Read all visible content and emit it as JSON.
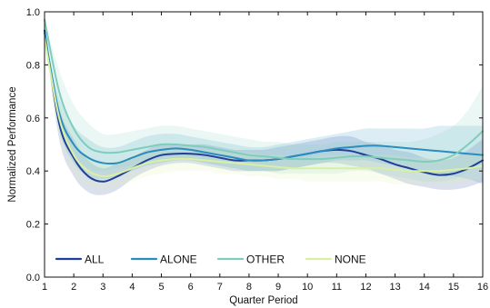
{
  "chart_data": {
    "type": "line",
    "title": "",
    "xlabel": "Quarter Period",
    "ylabel": "Normalized Performance",
    "xlim": [
      1,
      16
    ],
    "ylim": [
      0.0,
      1.0
    ],
    "x_ticks": [
      "1",
      "2",
      "3",
      "4",
      "5",
      "6",
      "7",
      "8",
      "9",
      "10",
      "11",
      "12",
      "13",
      "14",
      "15",
      "16"
    ],
    "y_ticks": [
      "0.0",
      "0.2",
      "0.4",
      "0.6",
      "0.8",
      "1.0"
    ],
    "grid": false,
    "legend_position": "bottom",
    "x": [
      1,
      1.5,
      2,
      2.5,
      3,
      3.5,
      4,
      4.5,
      5,
      5.5,
      6,
      6.5,
      7,
      7.5,
      8,
      8.5,
      9,
      9.5,
      10,
      10.5,
      11,
      11.5,
      12,
      12.5,
      13,
      13.5,
      14,
      14.5,
      15,
      15.5,
      16
    ],
    "series": [
      {
        "name": "ALL",
        "color": "#1f3f99",
        "values": [
          0.93,
          0.58,
          0.45,
          0.38,
          0.36,
          0.38,
          0.41,
          0.44,
          0.46,
          0.465,
          0.465,
          0.46,
          0.45,
          0.44,
          0.44,
          0.44,
          0.445,
          0.455,
          0.465,
          0.475,
          0.48,
          0.475,
          0.46,
          0.445,
          0.425,
          0.41,
          0.395,
          0.385,
          0.39,
          0.41,
          0.44
        ],
        "lower": [
          0.93,
          0.52,
          0.38,
          0.32,
          0.31,
          0.33,
          0.37,
          0.4,
          0.42,
          0.43,
          0.43,
          0.42,
          0.41,
          0.4,
          0.4,
          0.4,
          0.4,
          0.41,
          0.42,
          0.43,
          0.43,
          0.42,
          0.41,
          0.39,
          0.37,
          0.35,
          0.34,
          0.33,
          0.33,
          0.34,
          0.36
        ],
        "upper": [
          0.93,
          0.64,
          0.52,
          0.44,
          0.41,
          0.43,
          0.45,
          0.48,
          0.5,
          0.5,
          0.5,
          0.5,
          0.49,
          0.48,
          0.48,
          0.48,
          0.49,
          0.5,
          0.51,
          0.52,
          0.53,
          0.53,
          0.51,
          0.5,
          0.48,
          0.47,
          0.45,
          0.44,
          0.45,
          0.48,
          0.52
        ]
      },
      {
        "name": "ALONE",
        "color": "#2b8cbe",
        "values": [
          0.92,
          0.62,
          0.5,
          0.45,
          0.43,
          0.43,
          0.45,
          0.47,
          0.48,
          0.485,
          0.48,
          0.47,
          0.46,
          0.45,
          0.44,
          0.44,
          0.445,
          0.455,
          0.465,
          0.475,
          0.485,
          0.49,
          0.495,
          0.495,
          0.49,
          0.485,
          0.48,
          0.475,
          0.47,
          0.465,
          0.46
        ],
        "lower": [
          0.92,
          0.56,
          0.43,
          0.38,
          0.37,
          0.38,
          0.4,
          0.42,
          0.43,
          0.44,
          0.44,
          0.43,
          0.42,
          0.41,
          0.4,
          0.4,
          0.4,
          0.41,
          0.42,
          0.43,
          0.44,
          0.44,
          0.44,
          0.43,
          0.42,
          0.41,
          0.4,
          0.39,
          0.38,
          0.37,
          0.35
        ],
        "upper": [
          0.92,
          0.68,
          0.57,
          0.52,
          0.49,
          0.49,
          0.51,
          0.53,
          0.54,
          0.54,
          0.53,
          0.52,
          0.51,
          0.5,
          0.49,
          0.49,
          0.5,
          0.51,
          0.52,
          0.53,
          0.54,
          0.55,
          0.56,
          0.56,
          0.56,
          0.56,
          0.56,
          0.57,
          0.57,
          0.57,
          0.57
        ]
      },
      {
        "name": "OTHER",
        "color": "#7fcdbb",
        "values": [
          0.97,
          0.7,
          0.56,
          0.49,
          0.47,
          0.47,
          0.48,
          0.49,
          0.5,
          0.5,
          0.495,
          0.49,
          0.48,
          0.47,
          0.46,
          0.455,
          0.45,
          0.445,
          0.445,
          0.445,
          0.45,
          0.455,
          0.455,
          0.45,
          0.445,
          0.44,
          0.435,
          0.44,
          0.46,
          0.5,
          0.55
        ],
        "lower": [
          0.97,
          0.62,
          0.47,
          0.41,
          0.4,
          0.41,
          0.42,
          0.43,
          0.44,
          0.44,
          0.44,
          0.43,
          0.42,
          0.41,
          0.4,
          0.4,
          0.39,
          0.39,
          0.39,
          0.39,
          0.39,
          0.4,
          0.4,
          0.39,
          0.38,
          0.37,
          0.36,
          0.36,
          0.37,
          0.4,
          0.44
        ],
        "upper": [
          0.97,
          0.78,
          0.65,
          0.58,
          0.54,
          0.54,
          0.55,
          0.56,
          0.57,
          0.57,
          0.56,
          0.55,
          0.54,
          0.53,
          0.52,
          0.51,
          0.51,
          0.5,
          0.5,
          0.5,
          0.51,
          0.51,
          0.51,
          0.51,
          0.51,
          0.51,
          0.52,
          0.54,
          0.57,
          0.63,
          0.72
        ]
      },
      {
        "name": "NONE",
        "color": "#d9f0a3",
        "values": [
          0.9,
          0.6,
          0.46,
          0.4,
          0.38,
          0.39,
          0.41,
          0.43,
          0.44,
          0.445,
          0.445,
          0.44,
          0.435,
          0.43,
          0.425,
          0.42,
          0.415,
          0.41,
          0.41,
          0.41,
          0.41,
          0.41,
          0.41,
          0.41,
          0.405,
          0.4,
          0.4,
          0.4,
          0.405,
          0.41,
          0.42
        ],
        "lower": [
          0.9,
          0.54,
          0.39,
          0.34,
          0.33,
          0.34,
          0.36,
          0.38,
          0.39,
          0.4,
          0.4,
          0.4,
          0.39,
          0.39,
          0.38,
          0.38,
          0.37,
          0.37,
          0.36,
          0.36,
          0.36,
          0.36,
          0.36,
          0.36,
          0.35,
          0.35,
          0.35,
          0.35,
          0.35,
          0.36,
          0.37
        ],
        "upper": [
          0.9,
          0.66,
          0.53,
          0.46,
          0.43,
          0.44,
          0.46,
          0.48,
          0.49,
          0.49,
          0.49,
          0.48,
          0.48,
          0.47,
          0.47,
          0.46,
          0.46,
          0.45,
          0.45,
          0.46,
          0.46,
          0.46,
          0.46,
          0.46,
          0.46,
          0.45,
          0.45,
          0.45,
          0.46,
          0.46,
          0.47
        ]
      }
    ]
  }
}
